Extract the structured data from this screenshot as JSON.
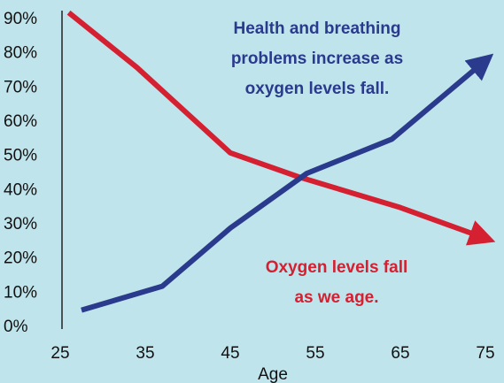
{
  "chart_data": {
    "type": "line",
    "x_label": "Age",
    "xlim": [
      25,
      75
    ],
    "xticks": [
      25,
      35,
      45,
      55,
      65,
      75
    ],
    "ylim": [
      0,
      90
    ],
    "yticks": [
      {
        "value": 0,
        "label": "0%"
      },
      {
        "value": 10,
        "label": "10%"
      },
      {
        "value": 20,
        "label": "20%"
      },
      {
        "value": 30,
        "label": "30%"
      },
      {
        "value": 40,
        "label": "40%"
      },
      {
        "value": 50,
        "label": "50%"
      },
      {
        "value": 60,
        "label": "60%"
      },
      {
        "value": 70,
        "label": "70%"
      },
      {
        "value": 80,
        "label": "80%"
      },
      {
        "value": 90,
        "label": "90%"
      }
    ],
    "series": [
      {
        "color": "#d42030",
        "x": [
          26,
          34,
          45,
          53,
          65,
          75
        ],
        "values": [
          92,
          76,
          51,
          44,
          35,
          26
        ]
      },
      {
        "color": "#2a3a8c",
        "x": [
          27.5,
          37,
          45,
          54,
          64,
          75
        ],
        "values": [
          5,
          12,
          29,
          45,
          55,
          78
        ]
      }
    ],
    "annotations": [
      {
        "lines": [
          "Health and breathing",
          "problems increase as",
          "oxygen levels fall."
        ],
        "color": "#2a3a8c"
      },
      {
        "lines": [
          "Oxygen levels fall",
          "as we age."
        ],
        "color": "#d42030"
      }
    ]
  }
}
